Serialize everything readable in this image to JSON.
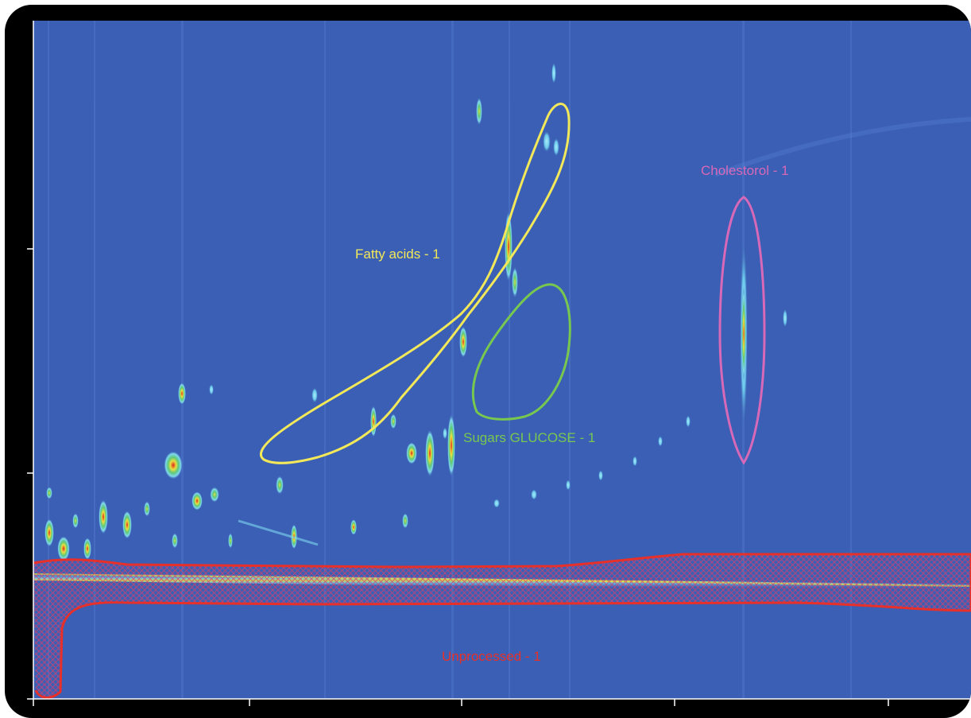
{
  "chart_data": {
    "type": "heatmap",
    "colors": {
      "background": "#3a5fb4",
      "frame": "#000000",
      "axis": "#ffffff",
      "peak_cyan": "#7fd8f0",
      "peak_green": "#5fc97a",
      "peak_yellow": "#e8e040",
      "peak_red": "#e0241c"
    },
    "regions": [
      {
        "name": "Fatty acids - 1",
        "color": "#f2e85a"
      },
      {
        "name": "Sugars GLUCOSE - 1",
        "color": "#78c850"
      },
      {
        "name": "Cholestorol - 1",
        "color": "#d868b8"
      },
      {
        "name": "Unprocessed - 1",
        "color": "#e8302a"
      }
    ]
  }
}
